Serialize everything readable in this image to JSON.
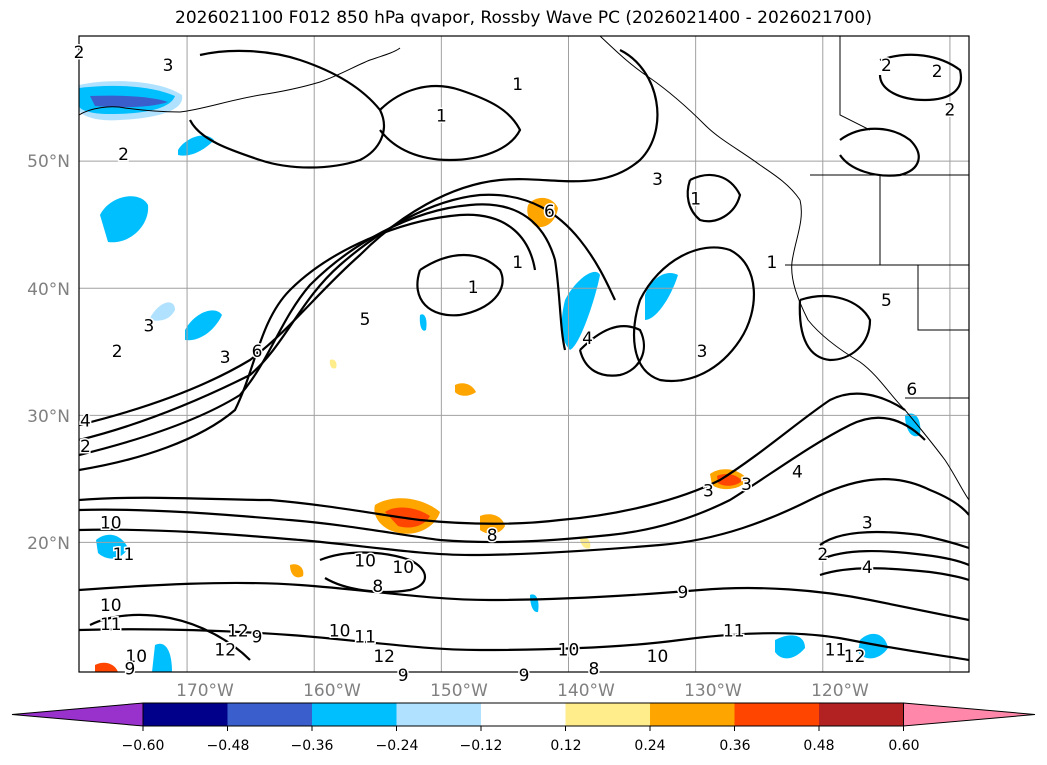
{
  "title": "2026021100 F012 850 hPa qvapor, Rossby Wave PC (2026021400 - 2026021700)",
  "axes": {
    "lat_labels": [
      "50°N",
      "40°N",
      "30°N",
      "20°N"
    ],
    "lon_labels": [
      "170°W",
      "160°W",
      "150°W",
      "140°W",
      "130°W",
      "120°W"
    ],
    "grid": true
  },
  "colorbar": {
    "ticks": [
      "−0.60",
      "−0.48",
      "−0.36",
      "−0.24",
      "−0.12",
      "0.12",
      "0.24",
      "0.36",
      "0.48",
      "0.60"
    ],
    "colors": [
      "#9932cc",
      "#00008b",
      "#3a5fcd",
      "#00bfff",
      "#b0e2ff",
      "#ffffff",
      "#ffec8b",
      "#ffa500",
      "#ff4500",
      "#b22222",
      "#ff88aa"
    ]
  },
  "contour_labels": [
    {
      "text": "2",
      "lon": -178.5,
      "lat": 58.5
    },
    {
      "text": "3",
      "lon": -171.5,
      "lat": 57.5
    },
    {
      "text": "2",
      "lon": -175,
      "lat": 50.5
    },
    {
      "text": "1",
      "lon": -150,
      "lat": 53.5
    },
    {
      "text": "1",
      "lon": -144,
      "lat": 56
    },
    {
      "text": "2",
      "lon": -115,
      "lat": 57.5
    },
    {
      "text": "2",
      "lon": -111,
      "lat": 57
    },
    {
      "text": "2",
      "lon": -110,
      "lat": 54
    },
    {
      "text": "3",
      "lon": -133,
      "lat": 48.5
    },
    {
      "text": "6",
      "lon": -141.5,
      "lat": 46
    },
    {
      "text": "1",
      "lon": -130,
      "lat": 47
    },
    {
      "text": "1",
      "lon": -124,
      "lat": 42
    },
    {
      "text": "1",
      "lon": -144,
      "lat": 42
    },
    {
      "text": "1",
      "lon": -147.5,
      "lat": 40
    },
    {
      "text": "3",
      "lon": -173,
      "lat": 37
    },
    {
      "text": "5",
      "lon": -156,
      "lat": 37.5
    },
    {
      "text": "2",
      "lon": -175.5,
      "lat": 35
    },
    {
      "text": "3",
      "lon": -167,
      "lat": 34.5
    },
    {
      "text": "6",
      "lon": -164.5,
      "lat": 35
    },
    {
      "text": "4",
      "lon": -138.5,
      "lat": 36
    },
    {
      "text": "3",
      "lon": -129.5,
      "lat": 35
    },
    {
      "text": "4",
      "lon": -178,
      "lat": 29.5
    },
    {
      "text": "2",
      "lon": -178,
      "lat": 27.5
    },
    {
      "text": "3",
      "lon": -129,
      "lat": 24
    },
    {
      "text": "3",
      "lon": -126,
      "lat": 24.5
    },
    {
      "text": "4",
      "lon": -122,
      "lat": 25.5
    },
    {
      "text": "3",
      "lon": -116.5,
      "lat": 21.5
    },
    {
      "text": "10",
      "lon": -176,
      "lat": 21.5
    },
    {
      "text": "11",
      "lon": -175,
      "lat": 19
    },
    {
      "text": "10",
      "lon": -156,
      "lat": 18.5
    },
    {
      "text": "10",
      "lon": -153,
      "lat": 18
    },
    {
      "text": "8",
      "lon": -155,
      "lat": 16.5
    },
    {
      "text": "8",
      "lon": -146,
      "lat": 20.5
    },
    {
      "text": "2",
      "lon": -120,
      "lat": 19
    },
    {
      "text": "4",
      "lon": -116.5,
      "lat": 18
    },
    {
      "text": "9",
      "lon": -131,
      "lat": 16
    },
    {
      "text": "10",
      "lon": -176,
      "lat": 15
    },
    {
      "text": "11",
      "lon": -176,
      "lat": 13.5
    },
    {
      "text": "12",
      "lon": -166,
      "lat": 13
    },
    {
      "text": "12",
      "lon": -167,
      "lat": 11.5
    },
    {
      "text": "9",
      "lon": -164.5,
      "lat": 12.5
    },
    {
      "text": "10",
      "lon": -158,
      "lat": 13
    },
    {
      "text": "11",
      "lon": -156,
      "lat": 12.5
    },
    {
      "text": "12",
      "lon": -154.5,
      "lat": 11
    },
    {
      "text": "10",
      "lon": -140,
      "lat": 11.5
    },
    {
      "text": "10",
      "lon": -133,
      "lat": 11
    },
    {
      "text": "11",
      "lon": -127,
      "lat": 13
    },
    {
      "text": "11",
      "lon": -119,
      "lat": 11.5
    },
    {
      "text": "12",
      "lon": -117.5,
      "lat": 11
    },
    {
      "text": "9",
      "lon": -153,
      "lat": 9.5
    },
    {
      "text": "9",
      "lon": -143.5,
      "lat": 9.5
    },
    {
      "text": "8",
      "lon": -138,
      "lat": 10
    },
    {
      "text": "10",
      "lon": -174,
      "lat": 11
    },
    {
      "text": "9",
      "lon": -174.5,
      "lat": 10
    },
    {
      "text": "5",
      "lon": -115,
      "lat": 39
    },
    {
      "text": "6",
      "lon": -113,
      "lat": 32
    }
  ]
}
